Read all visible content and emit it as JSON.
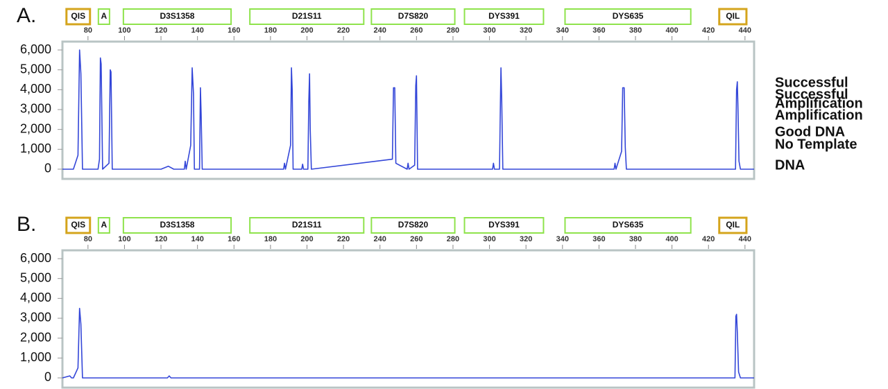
{
  "chart_data": [
    {
      "type": "line",
      "panel_label": "A.",
      "annotations": [
        "Successful",
        "Amplification",
        "Good DNA"
      ],
      "color": "#3346d8",
      "xlim": [
        66,
        445
      ],
      "xticks": [
        80,
        100,
        120,
        140,
        160,
        180,
        200,
        220,
        240,
        260,
        280,
        300,
        320,
        340,
        360,
        380,
        400,
        420,
        440
      ],
      "ylim": [
        -490,
        6420
      ],
      "yticks": [
        {
          "value": 6000,
          "label": "6,000"
        },
        {
          "value": 5000,
          "label": "5,000"
        },
        {
          "value": 4000,
          "label": "4,000"
        },
        {
          "value": 3000,
          "label": "3,000"
        },
        {
          "value": 2000,
          "label": "2,000"
        },
        {
          "value": 1000,
          "label": "1,000"
        },
        0
      ],
      "loci": [
        {
          "label": "QIS",
          "range": [
            68.2,
            81.1
          ],
          "color": "#d4a41c"
        },
        {
          "label": "A",
          "range": [
            85.7,
            91.8
          ],
          "color": "#8ee34b"
        },
        {
          "label": "D3S1358",
          "range": [
            99.4,
            158.4
          ],
          "color": "#8ee34b"
        },
        {
          "label": "D21S11",
          "range": [
            168.7,
            231.1
          ],
          "color": "#8ee34b"
        },
        {
          "label": "D7S820",
          "range": [
            235.3,
            281
          ],
          "color": "#8ee34b"
        },
        {
          "label": "DYS391",
          "range": [
            286.3,
            329.6
          ],
          "color": "#8ee34b"
        },
        {
          "label": "DYS635",
          "range": [
            341.4,
            410.3
          ],
          "color": "#8ee34b"
        },
        {
          "label": "QIL",
          "range": [
            425.9,
            440.8
          ],
          "color": "#d4a41c"
        }
      ],
      "x": [
        66,
        72,
        74.5,
        75.4,
        76.1,
        77,
        85.5,
        86.3,
        86.8,
        87.2,
        88,
        91.5,
        92.2,
        92.6,
        93.3,
        120,
        124,
        127,
        132.8,
        133.3,
        133.8,
        136.3,
        137.1,
        137.8,
        138.3,
        141.1,
        141.6,
        142,
        142.6,
        187.2,
        187.7,
        188.2,
        191,
        191.5,
        191.9,
        192.4,
        197.1,
        197.6,
        198.1,
        200.5,
        201,
        201.4,
        201.8,
        202.4,
        246.8,
        247.4,
        248.1,
        248.7,
        254.9,
        255.4,
        255.9,
        259,
        259.6,
        260,
        260.6,
        301.7,
        302.2,
        302.7,
        305.5,
        306,
        306.3,
        306.7,
        307.3,
        368.3,
        368.8,
        369.3,
        372.4,
        373,
        373.8,
        374.4,
        375,
        434.8,
        435.4,
        435.8,
        436.1,
        436.7,
        437.5,
        445
      ],
      "values": [
        0,
        0,
        700,
        6000,
        4800,
        0,
        0,
        500,
        5600,
        5300,
        0,
        300,
        5000,
        4900,
        0,
        0,
        150,
        0,
        0,
        400,
        0,
        1200,
        5100,
        3800,
        0,
        0,
        4100,
        2800,
        0,
        0,
        300,
        0,
        1200,
        5100,
        4000,
        0,
        0,
        250,
        0,
        0,
        3400,
        4800,
        2000,
        0,
        500,
        4100,
        4100,
        300,
        0,
        300,
        0,
        200,
        4200,
        4700,
        0,
        0,
        300,
        0,
        0,
        3300,
        5100,
        3500,
        0,
        0,
        300,
        0,
        900,
        4100,
        4100,
        1100,
        0,
        0,
        4000,
        4400,
        3300,
        400,
        0,
        0
      ]
    },
    {
      "type": "line",
      "panel_label": "B.",
      "annotations": [
        "Successful",
        "Amplification",
        "No Template",
        "DNA"
      ],
      "color": "#3346d8",
      "xlim": [
        66,
        445
      ],
      "xticks": [
        80,
        100,
        120,
        140,
        160,
        180,
        200,
        220,
        240,
        260,
        280,
        300,
        320,
        340,
        360,
        380,
        400,
        420,
        440
      ],
      "ylim": [
        -490,
        6420
      ],
      "yticks": [
        {
          "value": 6000,
          "label": "6,000"
        },
        {
          "value": 5000,
          "label": "5,000"
        },
        {
          "value": 4000,
          "label": "4,000"
        },
        {
          "value": 3000,
          "label": "3,000"
        },
        {
          "value": 2000,
          "label": "2,000"
        },
        {
          "value": 1000,
          "label": "1,000"
        },
        0
      ],
      "loci": [
        {
          "label": "QIS",
          "range": [
            68.2,
            81.1
          ],
          "color": "#d4a41c"
        },
        {
          "label": "A",
          "range": [
            85.7,
            91.8
          ],
          "color": "#8ee34b"
        },
        {
          "label": "D3S1358",
          "range": [
            99.4,
            158.4
          ],
          "color": "#8ee34b"
        },
        {
          "label": "D21S11",
          "range": [
            168.7,
            231.1
          ],
          "color": "#8ee34b"
        },
        {
          "label": "D7S820",
          "range": [
            235.3,
            281
          ],
          "color": "#8ee34b"
        },
        {
          "label": "DYS391",
          "range": [
            286.3,
            329.6
          ],
          "color": "#8ee34b"
        },
        {
          "label": "DYS635",
          "range": [
            341.4,
            410.3
          ],
          "color": "#8ee34b"
        },
        {
          "label": "QIL",
          "range": [
            425.9,
            440.8
          ],
          "color": "#d4a41c"
        }
      ],
      "x": [
        66,
        70,
        71,
        72,
        74.5,
        75.4,
        76.1,
        77,
        123.5,
        124.5,
        125.5,
        150,
        434.5,
        435,
        435.4,
        435.8,
        436.5,
        437.5,
        445
      ],
      "values": [
        0,
        100,
        0,
        0,
        500,
        3500,
        2700,
        0,
        0,
        100,
        0,
        0,
        0,
        3100,
        3200,
        2300,
        300,
        0,
        0
      ]
    }
  ]
}
